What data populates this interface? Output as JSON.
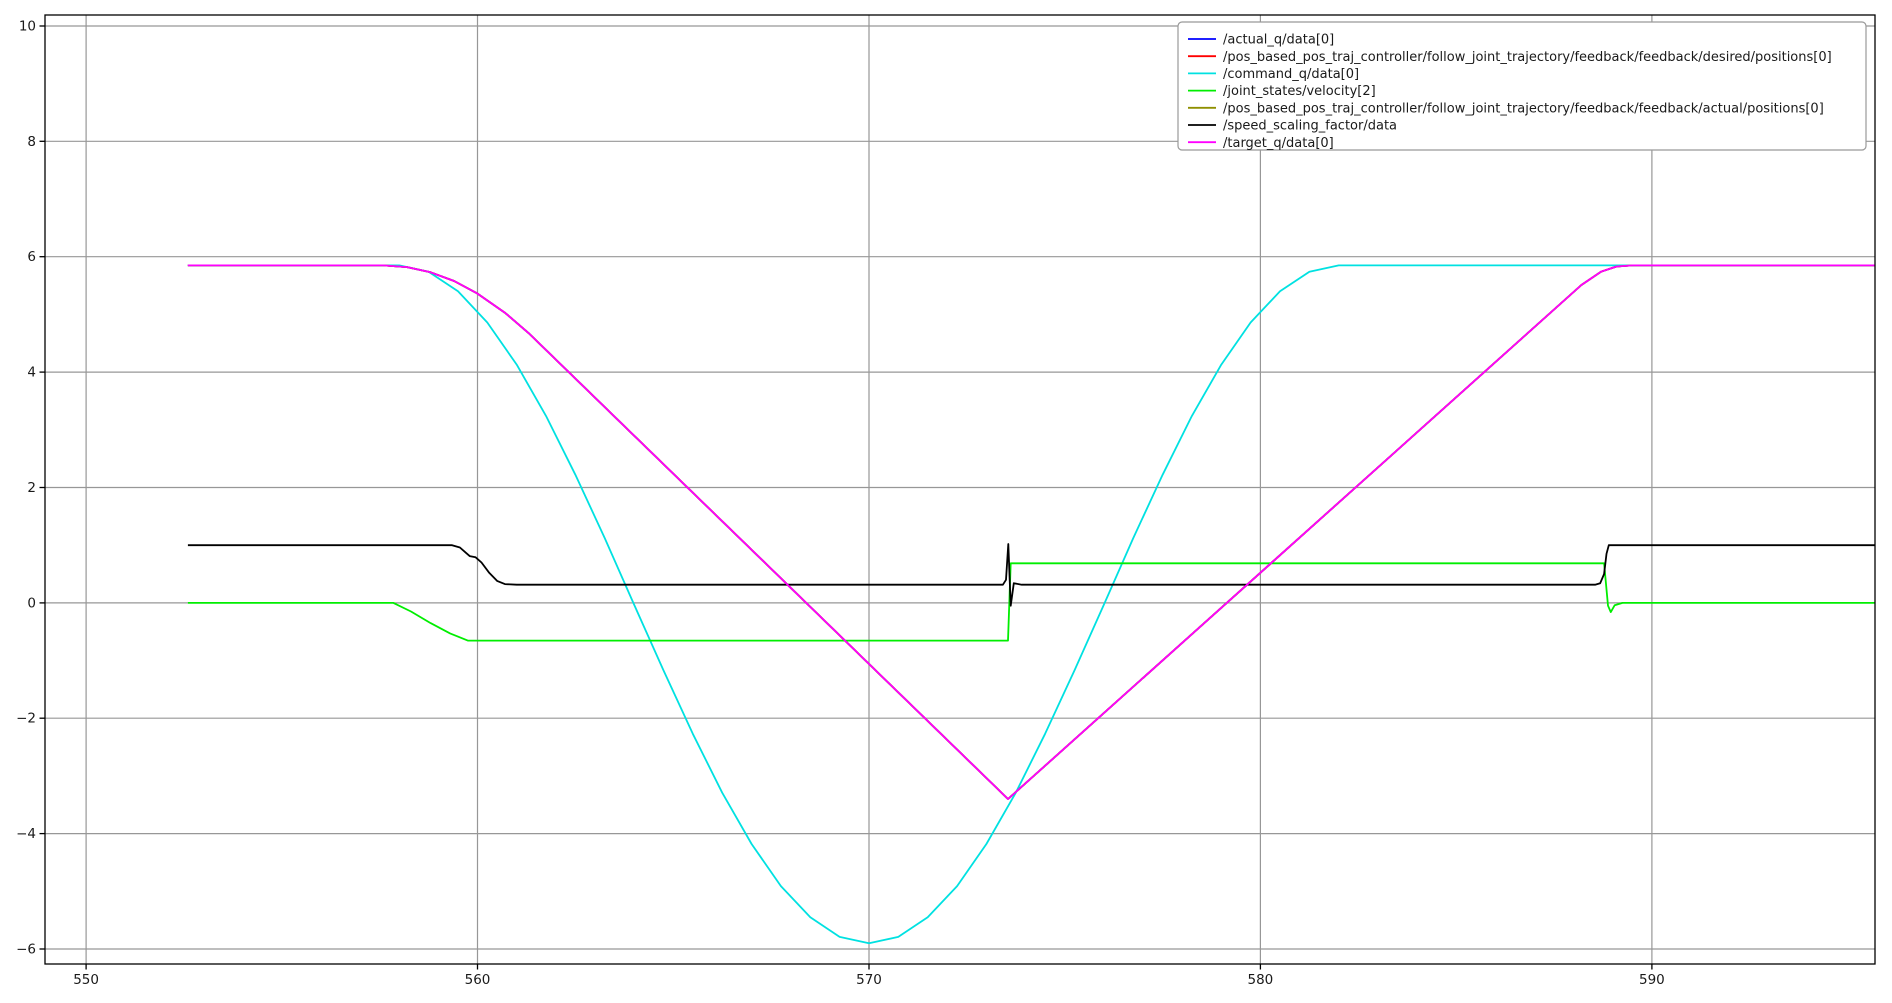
{
  "style": {
    "background": "#ffffff",
    "grid_color": "#979797",
    "spine_color": "#000000",
    "tick_color": "#000000",
    "tick_label_color": "#1a1a1a",
    "legend_border": "#999999",
    "legend_bg": "#ffffff"
  },
  "chart_data": {
    "type": "line",
    "title": "",
    "xlabel": "",
    "ylabel": "",
    "grid": true,
    "legend_position": "upper right",
    "xlim": [
      548.95,
      595.7
    ],
    "ylim": [
      -6.26,
      10.19
    ],
    "x_ticks": [
      550,
      560,
      570,
      580,
      590
    ],
    "x_tick_labels": [
      "550",
      "560",
      "570",
      "580",
      "590"
    ],
    "y_ticks": [
      10,
      8,
      6,
      4,
      2,
      0,
      -2,
      -4,
      -6
    ],
    "y_tick_labels": [
      "10",
      "8",
      "6",
      "4",
      "2",
      "0",
      "−2",
      "−4",
      "−6"
    ],
    "series": [
      {
        "name": "/actual_q/data[0]",
        "color": "#0000ff",
        "points": [
          [
            552.6,
            5.85
          ],
          [
            557.6,
            5.85
          ],
          [
            558.2,
            5.82
          ],
          [
            558.8,
            5.73
          ],
          [
            559.4,
            5.58
          ],
          [
            560.0,
            5.36
          ],
          [
            560.7,
            5.03
          ],
          [
            561.3,
            4.68
          ],
          [
            573.55,
            -3.4
          ],
          [
            588.2,
            5.51
          ],
          [
            588.7,
            5.74
          ],
          [
            589.1,
            5.83
          ],
          [
            589.5,
            5.85
          ],
          [
            595.69,
            5.85
          ]
        ]
      },
      {
        "name": "/pos_based_pos_traj_controller/follow_joint_trajectory/feedback/feedback/desired/positions[0]",
        "color": "#ff0000",
        "points": [
          [
            552.6,
            5.85
          ],
          [
            557.6,
            5.85
          ],
          [
            558.2,
            5.82
          ],
          [
            558.8,
            5.73
          ],
          [
            559.4,
            5.58
          ],
          [
            560.0,
            5.36
          ],
          [
            560.7,
            5.03
          ],
          [
            561.3,
            4.68
          ],
          [
            573.55,
            -3.4
          ],
          [
            588.2,
            5.51
          ],
          [
            588.7,
            5.74
          ],
          [
            589.1,
            5.83
          ],
          [
            589.5,
            5.85
          ],
          [
            595.69,
            5.85
          ]
        ]
      },
      {
        "name": "/command_q/data[0]",
        "color": "#00e1e1",
        "points": [
          [
            552.6,
            5.85
          ],
          [
            558,
            5.85
          ],
          [
            558.75,
            5.74
          ],
          [
            559.5,
            5.4
          ],
          [
            560.25,
            4.86
          ],
          [
            561,
            4.13
          ],
          [
            561.75,
            3.24
          ],
          [
            562.5,
            2.22
          ],
          [
            563.25,
            1.12
          ],
          [
            564,
            -0.03
          ],
          [
            564.75,
            -1.17
          ],
          [
            565.5,
            -2.27
          ],
          [
            566.25,
            -3.29
          ],
          [
            567,
            -4.18
          ],
          [
            567.75,
            -4.91
          ],
          [
            568.5,
            -5.45
          ],
          [
            569.25,
            -5.79
          ],
          [
            570,
            -5.9
          ],
          [
            570.75,
            -5.79
          ],
          [
            571.5,
            -5.45
          ],
          [
            572.25,
            -4.91
          ],
          [
            573,
            -4.18
          ],
          [
            573.75,
            -3.29
          ],
          [
            574.5,
            -2.27
          ],
          [
            575.25,
            -1.17
          ],
          [
            576,
            -0.03
          ],
          [
            576.75,
            1.12
          ],
          [
            577.5,
            2.22
          ],
          [
            578.25,
            3.24
          ],
          [
            579,
            4.13
          ],
          [
            579.75,
            4.86
          ],
          [
            580.5,
            5.4
          ],
          [
            581.25,
            5.74
          ],
          [
            582,
            5.85
          ],
          [
            595.69,
            5.85
          ]
        ]
      },
      {
        "name": "/joint_states/velocity[2]",
        "color": "#00ee00",
        "points": [
          [
            552.6,
            0
          ],
          [
            557.85,
            0
          ],
          [
            558.3,
            -0.15
          ],
          [
            558.8,
            -0.35
          ],
          [
            559.3,
            -0.53
          ],
          [
            559.75,
            -0.655
          ],
          [
            573.55,
            -0.655
          ],
          [
            573.62,
            0.685
          ],
          [
            588.78,
            0.685
          ],
          [
            588.88,
            -0.05
          ],
          [
            588.95,
            -0.16
          ],
          [
            589.05,
            -0.04
          ],
          [
            589.25,
            0
          ],
          [
            595.69,
            0
          ]
        ]
      },
      {
        "name": "/pos_based_pos_traj_controller/follow_joint_trajectory/feedback/feedback/actual/positions[0]",
        "color": "#8f8f00",
        "points": [
          [
            552.6,
            5.85
          ],
          [
            557.6,
            5.85
          ],
          [
            558.2,
            5.82
          ],
          [
            558.8,
            5.73
          ],
          [
            559.4,
            5.58
          ],
          [
            560.0,
            5.36
          ],
          [
            560.7,
            5.03
          ],
          [
            561.3,
            4.68
          ],
          [
            573.55,
            -3.4
          ],
          [
            588.2,
            5.51
          ],
          [
            588.7,
            5.74
          ],
          [
            589.1,
            5.83
          ],
          [
            589.5,
            5.85
          ],
          [
            595.69,
            5.85
          ]
        ]
      },
      {
        "name": "/speed_scaling_factor/data",
        "color": "#000000",
        "points": [
          [
            552.6,
            1.0
          ],
          [
            559.35,
            1.0
          ],
          [
            559.55,
            0.96
          ],
          [
            559.7,
            0.87
          ],
          [
            559.8,
            0.81
          ],
          [
            559.95,
            0.79
          ],
          [
            560.1,
            0.7
          ],
          [
            560.3,
            0.52
          ],
          [
            560.5,
            0.38
          ],
          [
            560.7,
            0.325
          ],
          [
            561.0,
            0.315
          ],
          [
            573.42,
            0.315
          ],
          [
            573.5,
            0.4
          ],
          [
            573.56,
            1.02
          ],
          [
            573.62,
            -0.05
          ],
          [
            573.7,
            0.34
          ],
          [
            573.9,
            0.315
          ],
          [
            588.55,
            0.315
          ],
          [
            588.68,
            0.34
          ],
          [
            588.78,
            0.5
          ],
          [
            588.84,
            0.85
          ],
          [
            588.9,
            1.0
          ],
          [
            595.69,
            1.0
          ]
        ]
      },
      {
        "name": "/target_q/data[0]",
        "color": "#ff00ff",
        "points": [
          [
            552.6,
            5.85
          ],
          [
            557.6,
            5.85
          ],
          [
            558.2,
            5.82
          ],
          [
            558.8,
            5.73
          ],
          [
            559.4,
            5.58
          ],
          [
            560.0,
            5.36
          ],
          [
            560.7,
            5.03
          ],
          [
            561.3,
            4.68
          ],
          [
            573.55,
            -3.4
          ],
          [
            588.2,
            5.51
          ],
          [
            588.7,
            5.74
          ],
          [
            589.1,
            5.83
          ],
          [
            589.5,
            5.85
          ],
          [
            595.69,
            5.85
          ]
        ]
      }
    ]
  }
}
